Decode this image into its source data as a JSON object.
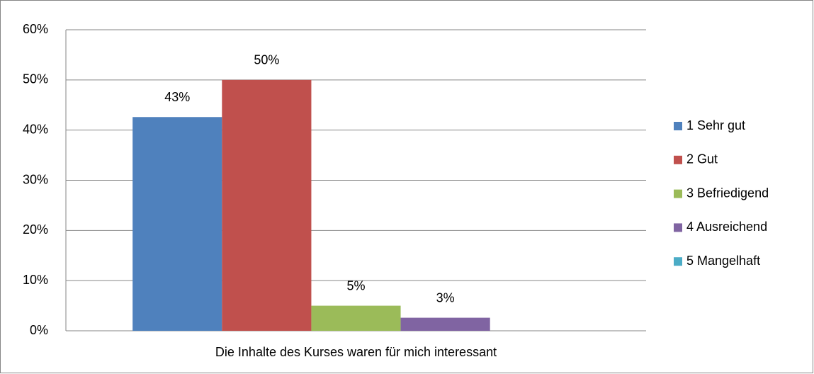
{
  "chart_data": {
    "type": "bar",
    "categories": [
      "Die Inhalte des Kurses waren für mich interessant"
    ],
    "series": [
      {
        "name": "1 Sehr gut",
        "color": "#4f81bd",
        "values": [
          42.6
        ],
        "value_labels": [
          "43%"
        ]
      },
      {
        "name": "2 Gut",
        "color": "#c0504d",
        "values": [
          50
        ],
        "value_labels": [
          "50%"
        ]
      },
      {
        "name": "3 Befriedigend",
        "color": "#9bbb59",
        "values": [
          5
        ],
        "value_labels": [
          "5%"
        ]
      },
      {
        "name": "4 Ausreichend",
        "color": "#8064a2",
        "values": [
          2.6
        ],
        "value_labels": [
          "3%"
        ]
      },
      {
        "name": "5 Mangelhaft",
        "color": "#4bacc6",
        "values": [
          0
        ],
        "value_labels": [
          null
        ]
      }
    ],
    "ylim": [
      0,
      60
    ],
    "yticks": [
      {
        "value": 0,
        "label": "0%"
      },
      {
        "value": 10,
        "label": "10%"
      },
      {
        "value": 20,
        "label": "20%"
      },
      {
        "value": 30,
        "label": "30%"
      },
      {
        "value": 40,
        "label": "40%"
      },
      {
        "value": 50,
        "label": "50%"
      },
      {
        "value": 60,
        "label": "60%"
      }
    ],
    "grid": true,
    "legend": "right"
  }
}
